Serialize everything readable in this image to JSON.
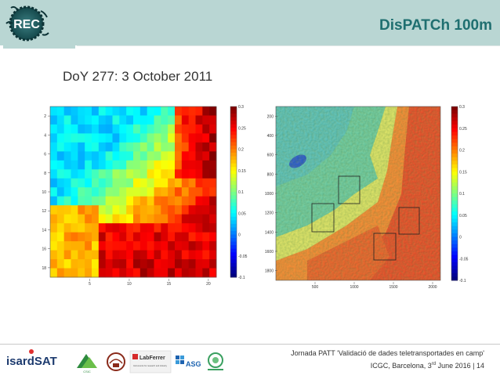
{
  "header": {
    "logo_text": "REC",
    "title": "DisPATCh 100m"
  },
  "subtitle": "DoY 277: 3 October 2011",
  "map_left": {
    "y_ticks": [
      "2",
      "4",
      "6",
      "8",
      "10",
      "12",
      "14",
      "16",
      "18"
    ],
    "x_ticks": [
      "5",
      "10",
      "15",
      "20"
    ],
    "colorbar_ticks": [
      "0.3",
      "0.25",
      "0.2",
      "0.15",
      "0.1",
      "0.05",
      "0",
      "-0.05",
      "-0.1"
    ]
  },
  "map_right": {
    "y_ticks": [
      "200",
      "400",
      "600",
      "800",
      "1000",
      "1200",
      "1400",
      "1600",
      "1800"
    ],
    "x_ticks": [
      "500",
      "1000",
      "1500",
      "2000"
    ],
    "colorbar_ticks": [
      "0.3",
      "0.25",
      "0.2",
      "0.15",
      "0.1",
      "0.05",
      "0",
      "-0.05",
      "-0.1"
    ]
  },
  "footer": {
    "line1": "Jornada PATT 'Validació de dades teletransportades en camp'",
    "line2_prefix": "ICGC, Barcelona, 3",
    "line2_sup": "rd",
    "line2_suffix": " June 2016 | 14"
  },
  "logos": {
    "isardsat": "isardSAT",
    "labferrer": "LabFerrer",
    "labferrer_sub": "Instruments for research and industry",
    "asg": "ASG"
  },
  "colors": {
    "header_bg": "#b9d6d3",
    "title": "#1f6f70"
  }
}
